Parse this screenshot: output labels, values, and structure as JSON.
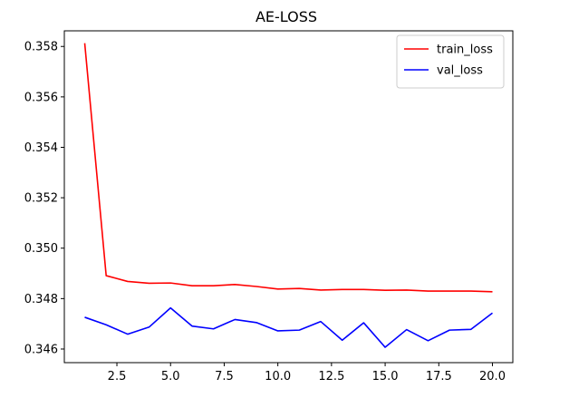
{
  "chart_data": {
    "type": "line",
    "title": "AE-LOSS",
    "xlabel": "",
    "ylabel": "",
    "x": [
      1,
      2,
      3,
      4,
      5,
      6,
      7,
      8,
      9,
      10,
      11,
      12,
      13,
      14,
      15,
      16,
      17,
      18,
      19,
      20
    ],
    "xlim": [
      0.05,
      20.95
    ],
    "ylim": [
      0.34546,
      0.35862
    ],
    "xticks": [
      2.5,
      5.0,
      7.5,
      10.0,
      12.5,
      15.0,
      17.5,
      20.0
    ],
    "xtick_labels": [
      "2.5",
      "5.0",
      "7.5",
      "10.0",
      "12.5",
      "15.0",
      "17.5",
      "20.0"
    ],
    "yticks": [
      0.346,
      0.348,
      0.35,
      0.352,
      0.354,
      0.356,
      0.358
    ],
    "ytick_labels": [
      "0.346",
      "0.348",
      "0.350",
      "0.352",
      "0.354",
      "0.356",
      "0.358"
    ],
    "grid": false,
    "legend_position": "top-right",
    "series": [
      {
        "name": "train_loss",
        "color": "#ff0000",
        "values": [
          0.35813,
          0.34891,
          0.34868,
          0.34861,
          0.34862,
          0.34851,
          0.34851,
          0.34856,
          0.34848,
          0.34838,
          0.3484,
          0.34834,
          0.34836,
          0.34836,
          0.34833,
          0.34834,
          0.3483,
          0.3483,
          0.3483,
          0.34827
        ]
      },
      {
        "name": "val_loss",
        "color": "#0000ff",
        "values": [
          0.34726,
          0.34696,
          0.34659,
          0.34687,
          0.34763,
          0.34691,
          0.3468,
          0.34717,
          0.34705,
          0.34672,
          0.34675,
          0.34709,
          0.34635,
          0.34704,
          0.34607,
          0.34677,
          0.34633,
          0.34675,
          0.34678,
          0.34743
        ]
      }
    ]
  }
}
